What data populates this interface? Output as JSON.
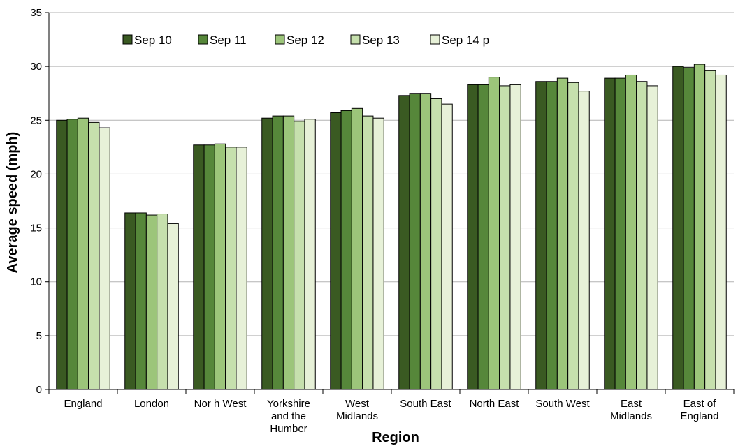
{
  "chart_data": {
    "type": "bar",
    "xlabel": "Region",
    "ylabel": "Average speed (mph)",
    "ylim": [
      0,
      35
    ],
    "yticks": [
      0,
      5,
      10,
      15,
      20,
      25,
      30,
      35
    ],
    "grid": true,
    "legend_position": "top",
    "categories": [
      [
        "England"
      ],
      [
        "London"
      ],
      [
        "Nor h West"
      ],
      [
        "Yorkshire",
        "and the",
        "Humber"
      ],
      [
        "West",
        "Midlands"
      ],
      [
        "South East"
      ],
      [
        "North East"
      ],
      [
        "South West"
      ],
      [
        "East",
        "Midlands"
      ],
      [
        "East of",
        "England"
      ]
    ],
    "series": [
      {
        "name": "Sep 10",
        "color": "#3a5a22",
        "values": [
          25.0,
          16.4,
          22.7,
          25.2,
          25.7,
          27.3,
          28.3,
          28.6,
          28.9,
          30.0
        ]
      },
      {
        "name": "Sep 11",
        "color": "#56873a",
        "values": [
          25.1,
          16.4,
          22.7,
          25.4,
          25.9,
          27.5,
          28.3,
          28.6,
          28.9,
          29.9
        ]
      },
      {
        "name": "Sep 12",
        "color": "#9cc57a",
        "values": [
          25.2,
          16.2,
          22.8,
          25.4,
          26.1,
          27.5,
          29.0,
          28.9,
          29.2,
          30.2
        ]
      },
      {
        "name": "Sep 13",
        "color": "#c6e0ad",
        "values": [
          24.8,
          16.3,
          22.5,
          24.9,
          25.4,
          27.0,
          28.2,
          28.5,
          28.6,
          29.6
        ]
      },
      {
        "name": "Sep 14 p",
        "color": "#e7f1d8",
        "values": [
          24.3,
          15.4,
          22.5,
          25.1,
          25.2,
          26.5,
          28.3,
          27.7,
          28.2,
          29.2
        ]
      }
    ]
  }
}
